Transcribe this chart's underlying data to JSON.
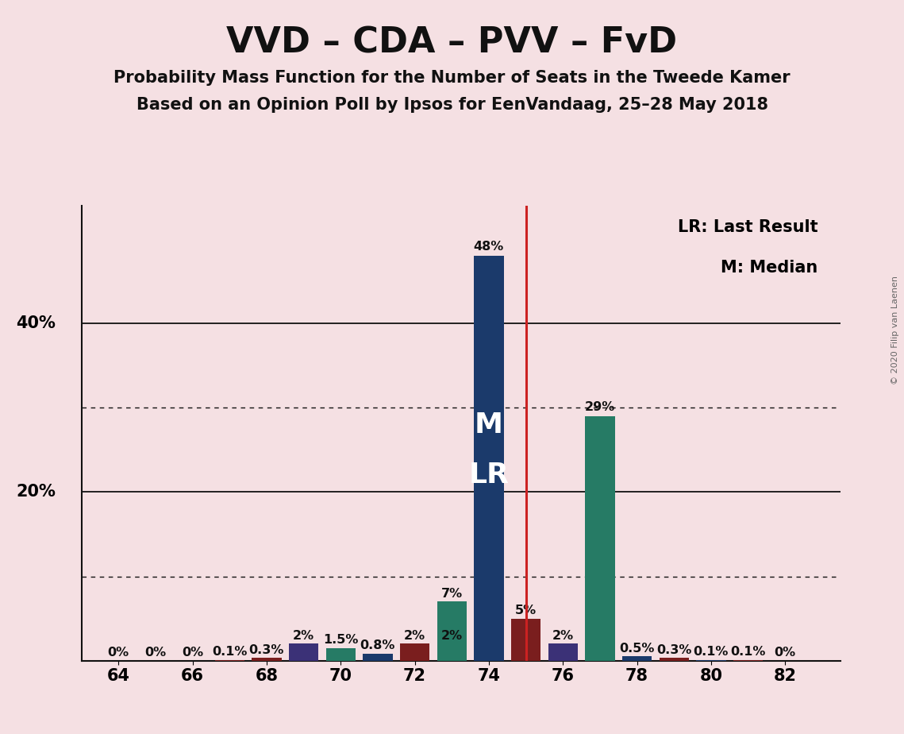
{
  "title": "VVD – CDA – PVV – FvD",
  "subtitle1": "Probability Mass Function for the Number of Seats in the Tweede Kamer",
  "subtitle2": "Based on an Opinion Poll by Ipsos for EenVandaag, 25–28 May 2018",
  "copyright": "© 2020 Filip van Laenen",
  "legend_lr": "LR: Last Result",
  "legend_m": "M: Median",
  "background_color": "#f5e0e3",
  "x_min": 63.0,
  "x_max": 83.5,
  "y_min": 0,
  "y_max": 54,
  "solid_gridlines": [
    20,
    40
  ],
  "dotted_gridlines": [
    10,
    30
  ],
  "xticks": [
    64,
    66,
    68,
    70,
    72,
    74,
    76,
    78,
    80,
    82
  ],
  "last_result_x": 75.0,
  "median_x": 74,
  "y_label_20": "20%",
  "y_label_40": "40%",
  "colors": {
    "navy": "#1b3a6b",
    "teal": "#267b65",
    "darkred": "#7a1e1e",
    "purple": "#3b3177"
  },
  "bars": [
    {
      "x": 64,
      "height": 0.0,
      "color": "navy",
      "label": "0%"
    },
    {
      "x": 65,
      "height": 0.0,
      "color": "darkred",
      "label": "0%"
    },
    {
      "x": 66,
      "height": 0.0,
      "color": "navy",
      "label": "0%"
    },
    {
      "x": 67,
      "height": 0.1,
      "color": "darkred",
      "label": "0.1%"
    },
    {
      "x": 68,
      "height": 0.3,
      "color": "darkred",
      "label": "0.3%"
    },
    {
      "x": 69,
      "height": 2.0,
      "color": "purple",
      "label": "2%"
    },
    {
      "x": 70,
      "height": 1.5,
      "color": "teal",
      "label": "1.5%"
    },
    {
      "x": 71,
      "height": 0.8,
      "color": "navy",
      "label": "0.8%"
    },
    {
      "x": 72,
      "height": 2.0,
      "color": "darkred",
      "label": "2%"
    },
    {
      "x": 73,
      "height": 2.0,
      "color": "navy",
      "label": "2%"
    },
    {
      "x": 73,
      "height": 7.0,
      "color": "teal",
      "label": "7%"
    },
    {
      "x": 74,
      "height": 48.0,
      "color": "navy",
      "label": "48%"
    },
    {
      "x": 75,
      "height": 5.0,
      "color": "darkred",
      "label": "5%"
    },
    {
      "x": 76,
      "height": 2.0,
      "color": "purple",
      "label": "2%"
    },
    {
      "x": 77,
      "height": 29.0,
      "color": "teal",
      "label": "29%"
    },
    {
      "x": 78,
      "height": 0.5,
      "color": "navy",
      "label": "0.5%"
    },
    {
      "x": 79,
      "height": 0.3,
      "color": "darkred",
      "label": "0.3%"
    },
    {
      "x": 80,
      "height": 0.1,
      "color": "navy",
      "label": "0.1%"
    },
    {
      "x": 81,
      "height": 0.1,
      "color": "darkred",
      "label": "0.1%"
    },
    {
      "x": 82,
      "height": 0.0,
      "color": "navy",
      "label": "0%"
    }
  ],
  "bar_width": 0.8,
  "label_fontsize": 11.5,
  "tick_fontsize": 15,
  "axis_label_fontsize": 15,
  "title_fontsize": 32,
  "subtitle_fontsize": 15,
  "legend_fontsize": 15,
  "ml_fontsize": 26,
  "ml_y_m": 28,
  "ml_y_lr": 22,
  "y_label_x_offset": -0.7
}
